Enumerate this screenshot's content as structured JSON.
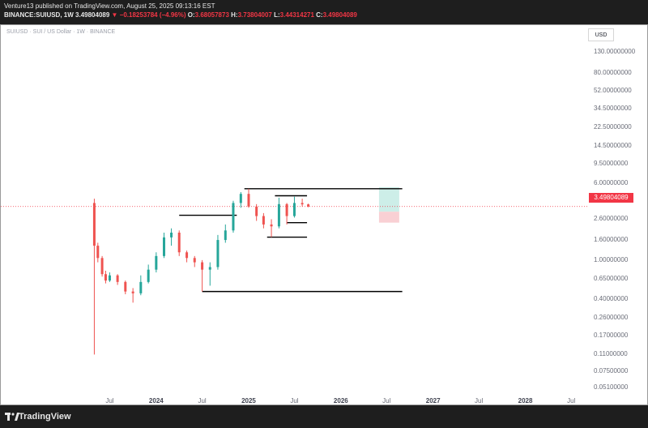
{
  "header": {
    "published_line": "Venture13 published on TradingView.com, August 25, 2025 09:13:16 EST",
    "symbol": "BINANCE:SUIUSD",
    "interval": "1W",
    "last": "3.49804089",
    "change": "−0.18253784 (−4.96%)",
    "open_label": "O:",
    "open": "3.68057873",
    "high_label": "H:",
    "high": "3.73804007",
    "low_label": "L:",
    "low": "3.44314271",
    "close_label": "C:",
    "close": "3.49804089"
  },
  "chart": {
    "legend": "SUIUSD · SUI / US Dollar · 1W · BINANCE",
    "currency_button": "USD",
    "price_tag": "3.49804089",
    "y_ticks": [
      "130.00000000",
      "80.00000000",
      "52.00000000",
      "34.50000000",
      "22.50000000",
      "14.50000000",
      "9.50000000",
      "6.00000000",
      "4.00000000",
      "2.60000000",
      "1.60000000",
      "1.00000000",
      "0.65000000",
      "0.40000000",
      "0.26000000",
      "0.17000000",
      "0.11000000",
      "0.07500000",
      "0.05100000"
    ],
    "x_ticks": [
      {
        "label": "Jul",
        "major": false
      },
      {
        "label": "2024",
        "major": true
      },
      {
        "label": "Jul",
        "major": false
      },
      {
        "label": "2025",
        "major": true
      },
      {
        "label": "Jul",
        "major": false
      },
      {
        "label": "2026",
        "major": true
      },
      {
        "label": "Jul",
        "major": false
      },
      {
        "label": "2027",
        "major": true
      },
      {
        "label": "Jul",
        "major": false
      },
      {
        "label": "2028",
        "major": true
      },
      {
        "label": "Jul",
        "major": false
      }
    ]
  },
  "footer": {
    "brand": "TradingView"
  },
  "colors": {
    "up": "#26a69a",
    "down": "#ef5350",
    "price_line": "#f23645",
    "lines": "#000000",
    "profit_zone": "#cdeee8",
    "loss_zone": "#f9d0d4"
  },
  "chart_data": {
    "type": "candlestick",
    "scale": "log",
    "symbol": "SUIUSD",
    "interval": "1W",
    "ylim": [
      0.05,
      160
    ],
    "x_range": [
      "2023-05-01",
      "2028-08-01"
    ],
    "last_price": 3.49804089,
    "series": [
      {
        "date": "2023-05-01",
        "close": 1.4,
        "ohlc": [
          3.8,
          4.2,
          0.11,
          1.4
        ]
      },
      {
        "date": "2023-05-15",
        "close": 1.05,
        "ohlc": [
          1.4,
          1.5,
          0.95,
          1.05
        ]
      },
      {
        "date": "2023-06-01",
        "close": 0.72,
        "ohlc": [
          1.05,
          1.1,
          0.68,
          0.72
        ]
      },
      {
        "date": "2023-06-15",
        "close": 0.62,
        "ohlc": [
          0.72,
          0.78,
          0.58,
          0.62
        ]
      },
      {
        "date": "2023-07-01",
        "close": 0.7,
        "ohlc": [
          0.62,
          0.75,
          0.6,
          0.7
        ]
      },
      {
        "date": "2023-08-01",
        "close": 0.6,
        "ohlc": [
          0.7,
          0.72,
          0.56,
          0.6
        ]
      },
      {
        "date": "2023-09-01",
        "close": 0.48,
        "ohlc": [
          0.6,
          0.62,
          0.45,
          0.48
        ]
      },
      {
        "date": "2023-10-01",
        "close": 0.46,
        "ohlc": [
          0.48,
          0.52,
          0.37,
          0.46
        ]
      },
      {
        "date": "2023-11-01",
        "close": 0.6,
        "ohlc": [
          0.46,
          0.7,
          0.44,
          0.6
        ]
      },
      {
        "date": "2023-12-01",
        "close": 0.8,
        "ohlc": [
          0.6,
          0.9,
          0.58,
          0.8
        ]
      },
      {
        "date": "2024-01-01",
        "close": 1.1,
        "ohlc": [
          0.8,
          1.2,
          0.75,
          1.1
        ]
      },
      {
        "date": "2024-02-01",
        "close": 1.7,
        "ohlc": [
          1.1,
          1.9,
          1.05,
          1.7
        ]
      },
      {
        "date": "2024-03-01",
        "close": 1.9,
        "ohlc": [
          1.7,
          2.1,
          1.4,
          1.9
        ]
      },
      {
        "date": "2024-04-01",
        "close": 1.2,
        "ohlc": [
          1.9,
          2.0,
          1.1,
          1.2
        ]
      },
      {
        "date": "2024-05-01",
        "close": 1.05,
        "ohlc": [
          1.2,
          1.25,
          0.95,
          1.05
        ]
      },
      {
        "date": "2024-06-01",
        "close": 0.95,
        "ohlc": [
          1.05,
          1.1,
          0.85,
          0.95
        ]
      },
      {
        "date": "2024-07-01",
        "close": 0.8,
        "ohlc": [
          0.95,
          1.0,
          0.48,
          0.8
        ]
      },
      {
        "date": "2024-08-01",
        "close": 0.85,
        "ohlc": [
          0.8,
          0.95,
          0.55,
          0.85
        ]
      },
      {
        "date": "2024-09-01",
        "close": 1.6,
        "ohlc": [
          0.85,
          1.8,
          0.8,
          1.6
        ]
      },
      {
        "date": "2024-10-01",
        "close": 2.0,
        "ohlc": [
          1.6,
          2.3,
          1.5,
          2.0
        ]
      },
      {
        "date": "2024-11-01",
        "close": 3.8,
        "ohlc": [
          2.0,
          4.0,
          1.9,
          3.8
        ]
      },
      {
        "date": "2024-12-01",
        "close": 4.7,
        "ohlc": [
          3.8,
          4.9,
          3.4,
          4.7
        ]
      },
      {
        "date": "2025-01-01",
        "close": 3.5,
        "ohlc": [
          4.7,
          5.3,
          3.4,
          3.5
        ]
      },
      {
        "date": "2025-02-01",
        "close": 2.8,
        "ohlc": [
          3.5,
          3.7,
          2.5,
          2.8
        ]
      },
      {
        "date": "2025-03-01",
        "close": 2.3,
        "ohlc": [
          2.8,
          3.0,
          2.1,
          2.3
        ]
      },
      {
        "date": "2025-04-01",
        "close": 2.2,
        "ohlc": [
          2.3,
          2.6,
          1.71,
          2.2
        ]
      },
      {
        "date": "2025-05-01",
        "close": 3.7,
        "ohlc": [
          2.2,
          4.3,
          2.1,
          3.7
        ]
      },
      {
        "date": "2025-06-01",
        "close": 2.8,
        "ohlc": [
          3.7,
          3.8,
          2.3,
          2.8
        ]
      },
      {
        "date": "2025-07-01",
        "close": 3.8,
        "ohlc": [
          2.8,
          4.4,
          2.7,
          3.8
        ]
      },
      {
        "date": "2025-08-01",
        "close": 3.68,
        "ohlc": [
          3.8,
          4.2,
          3.5,
          3.68
        ]
      },
      {
        "date": "2025-08-25",
        "close": 3.5,
        "ohlc": [
          3.68,
          3.74,
          3.44,
          3.5
        ]
      }
    ],
    "annotations": {
      "levels": [
        {
          "price": 5.3,
          "from": "2024-12-15",
          "to": "2026-09-01"
        },
        {
          "price": 4.5,
          "from": "2025-04-15",
          "to": "2025-08-20"
        },
        {
          "price": 2.85,
          "from": "2024-04-01",
          "to": "2024-11-15"
        },
        {
          "price": 2.4,
          "from": "2025-06-01",
          "to": "2025-08-20"
        },
        {
          "price": 1.71,
          "from": "2025-03-15",
          "to": "2025-08-20"
        },
        {
          "price": 0.48,
          "from": "2024-07-01",
          "to": "2026-09-01"
        }
      ],
      "position": {
        "from": "2026-06-01",
        "to": "2026-08-20",
        "entry": 3.1,
        "target": 5.5,
        "stop": 2.4
      }
    }
  }
}
